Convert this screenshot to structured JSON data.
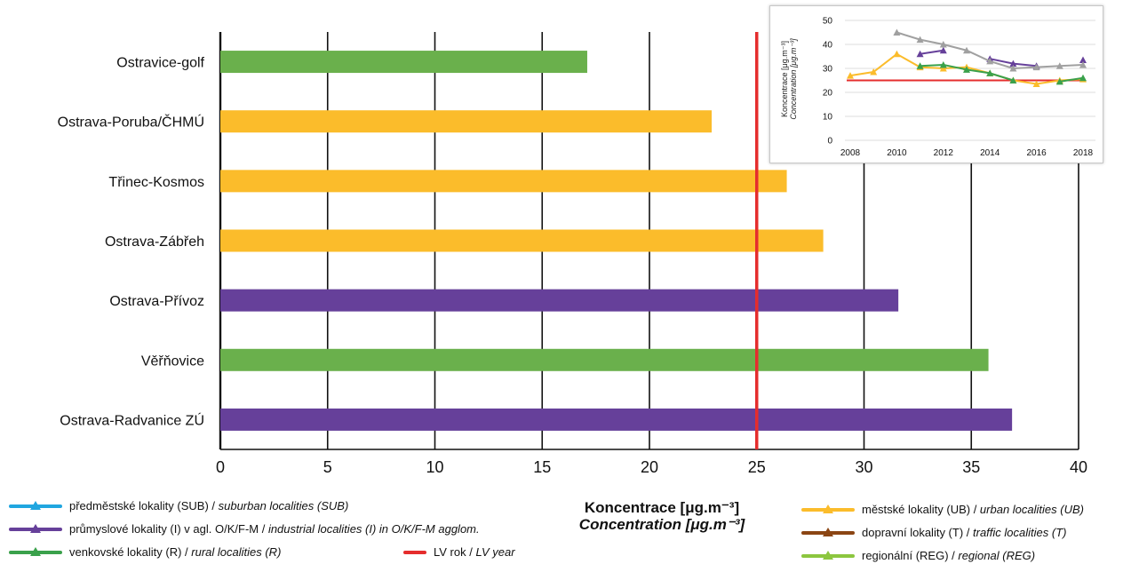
{
  "chart_data": [
    {
      "type": "bar",
      "orientation": "horizontal",
      "categories": [
        "Ostravice-golf",
        "Ostrava-Poruba/ČHMÚ",
        "Třinec-Kosmos",
        "Ostrava-Zábřeh",
        "Ostrava-Přívoz",
        "Věřňovice",
        "Ostrava-Radvanice ZÚ"
      ],
      "values": [
        17.1,
        22.9,
        26.4,
        28.1,
        31.6,
        35.8,
        36.9
      ],
      "bar_colors": [
        "#6ab04c",
        "#fbbc2b",
        "#fbbc2b",
        "#fbbc2b",
        "#66409a",
        "#6ab04c",
        "#66409a"
      ],
      "xlim": [
        0,
        40
      ],
      "xticks": [
        "0",
        "5",
        "10",
        "15",
        "20",
        "25",
        "30",
        "35",
        "40"
      ],
      "grid": true,
      "limit_value": {
        "value": 25,
        "color": "#e52d2d"
      },
      "xlabel": "Koncentrace [μg.m⁻³]",
      "xlabel_en": "Concentration [μg.m⁻³]"
    },
    {
      "type": "line",
      "x": [
        2008,
        2009,
        2010,
        2011,
        2012,
        2013,
        2014,
        2015,
        2016,
        2017,
        2018
      ],
      "xticks": [
        "2008",
        "2010",
        "2012",
        "2014",
        "2016",
        "2018"
      ],
      "yticks": [
        "0",
        "10",
        "20",
        "30",
        "40",
        "50"
      ],
      "ylim": [
        0,
        50
      ],
      "ylabel": "Koncentrace [μg.m⁻³]",
      "ylabel_en": "Concentration [μg.m⁻³]",
      "grid": true,
      "series": [
        {
          "color": "#fbbc2b",
          "values": [
            27,
            28.5,
            36,
            30.5,
            30,
            30.5,
            28,
            25,
            23.5,
            25,
            25.5
          ]
        },
        {
          "color": "#66409a",
          "values": [
            null,
            null,
            null,
            36,
            37.5,
            null,
            34,
            32,
            31,
            null,
            33.5
          ]
        },
        {
          "color": "#a0a0a0",
          "values": [
            null,
            null,
            45,
            42,
            40,
            37.5,
            33,
            30,
            30.5,
            31,
            31.5
          ]
        },
        {
          "color": "#3aa14b",
          "values": [
            null,
            null,
            null,
            31,
            31.5,
            29.5,
            28,
            25,
            null,
            24.5,
            26
          ]
        }
      ],
      "limit_value": {
        "value": 25,
        "color": "#e52d2d"
      }
    }
  ],
  "legend": {
    "items": [
      {
        "cz": "předměstské lokality (SUB) / ",
        "en": "suburban localities (SUB)",
        "color": "#20a6e0",
        "marker": true
      },
      {
        "cz": "průmyslové lokality (I) v agl. O/K/F-M / ",
        "en": "industrial localities (I) in O/K/F-M agglom.",
        "color": "#66409a",
        "marker": true
      },
      {
        "cz": "venkovské lokality (R) / ",
        "en": "rural localities (R)",
        "color": "#3aa14b",
        "marker": true
      },
      {
        "cz": "LV rok / ",
        "en": "LV year",
        "color": "#e52d2d",
        "marker": false
      },
      {
        "cz": "městské lokality (UB) / ",
        "en": "urban localities (UB)",
        "color": "#fbbc2b",
        "marker": true
      },
      {
        "cz": "dopravní lokality (T) / ",
        "en": "traffic localities (T)",
        "color": "#8b4513",
        "marker": true
      },
      {
        "cz": "regionální (REG) / ",
        "en": "regional (REG)",
        "color": "#8cc63f",
        "marker": true
      }
    ]
  }
}
